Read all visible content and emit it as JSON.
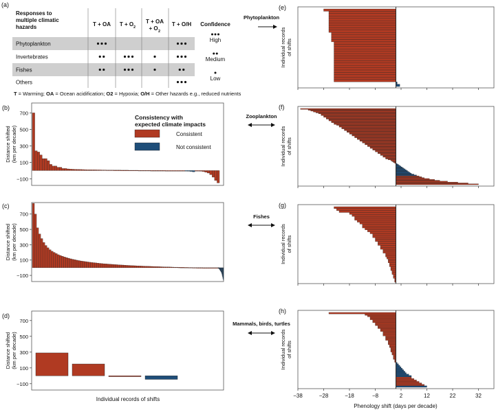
{
  "colors": {
    "consistent": "#b03a22",
    "not_consistent": "#1f4e79",
    "row_shade": "#cfcfcf",
    "frame": "#555555"
  },
  "panel_letters": {
    "a": "(a)",
    "b": "(b)",
    "c": "(c)",
    "d": "(d)",
    "e": "(e)",
    "f": "(f)",
    "g": "(g)",
    "h": "(h)"
  },
  "table": {
    "header": {
      "title_lines": [
        "Responses to",
        "multiple climatic",
        "hazards"
      ],
      "col1": "T + OA",
      "col2_main": "T + O",
      "col2_sub": "2",
      "col3_line1": "T + OA",
      "col3_line2_main": "+ O",
      "col3_line2_sub": "2",
      "col4": "T + O/H",
      "confidence": "Confidence"
    },
    "rows": [
      {
        "label": "Phytoplankton",
        "dots": [
          3,
          0,
          0,
          3
        ],
        "shaded": true
      },
      {
        "label": "Invertebrates",
        "dots": [
          2,
          3,
          1,
          3
        ],
        "shaded": false
      },
      {
        "label": "Fishes",
        "dots": [
          2,
          3,
          1,
          2
        ],
        "shaded": true
      },
      {
        "label": "Others",
        "dots": [
          0,
          0,
          0,
          3
        ],
        "shaded": false
      }
    ],
    "confidence_levels": [
      {
        "label": "High",
        "dots": 3
      },
      {
        "label": "Medium",
        "dots": 2
      },
      {
        "label": "Low",
        "dots": 1
      }
    ],
    "footnote": [
      {
        "text": "T",
        "bold": true
      },
      {
        "text": " = Warming; ",
        "bold": false
      },
      {
        "text": "OA",
        "bold": true
      },
      {
        "text": " = Ocean acidification; ",
        "bold": false
      },
      {
        "text": "O2",
        "bold": true
      },
      {
        "text": " = Hypoxia; ",
        "bold": false
      },
      {
        "text": "O/H",
        "bold": true
      },
      {
        "text": " = Other hazards e.g., reduced nutrients",
        "bold": false
      }
    ]
  },
  "legend": {
    "title_lines": [
      "Consistency with",
      "expected climate impacts"
    ],
    "items": [
      {
        "label": "Consistent",
        "color": "#b03a22"
      },
      {
        "label": "Not consistent",
        "color": "#1f4e79"
      }
    ]
  },
  "group_labels": {
    "phytoplankton": "Phytoplankton",
    "zooplankton": "Zooplankton",
    "fishes": "Fishes",
    "mammals": "Mammals, birds, turtles"
  },
  "left_axes": {
    "ylabel_lines": [
      "Distance shifted",
      "(km per decade)"
    ],
    "xlabel": "Individual records of shifts"
  },
  "right_axes": {
    "ylabel_lines": [
      "Individual records",
      "of shifts"
    ],
    "xlabel": "Phenology shift (days per decade)",
    "x_ticks": [
      -38,
      -28,
      -18,
      -8,
      2,
      12,
      22,
      32
    ],
    "xlim": [
      -38,
      38
    ],
    "zero_line": 0
  },
  "chart_data": [
    {
      "panel": "b",
      "type": "bar",
      "xlabel": "",
      "ylabel": "Distance shifted (km per decade)",
      "y_ticks": [
        -100,
        100,
        300,
        500,
        700
      ],
      "ylim": [
        -180,
        820
      ],
      "series": [
        {
          "name": "Consistent",
          "values": [
            700,
            240,
            225,
            190,
            145,
            145,
            120,
            75,
            55,
            55,
            40,
            40,
            25,
            25,
            20,
            18,
            16,
            15,
            14,
            13,
            12,
            11,
            10,
            10,
            9,
            9,
            8,
            8,
            7,
            7,
            6,
            6,
            6,
            5,
            5,
            5,
            4,
            4,
            4,
            3,
            3,
            3,
            3,
            2,
            2,
            2,
            2,
            2,
            1,
            1,
            1,
            1,
            1,
            1,
            0,
            0,
            0,
            0,
            0,
            0,
            0,
            0,
            0,
            0,
            0,
            0,
            -2,
            -4,
            -8,
            -12,
            -20,
            -30,
            -50,
            -80,
            -120,
            -150
          ]
        },
        {
          "name": "Not consistent",
          "indices": [
            62,
            63,
            64,
            65
          ],
          "values": [
            -5,
            -8,
            -10,
            -15
          ]
        }
      ]
    },
    {
      "panel": "c",
      "type": "bar",
      "xlabel": "",
      "ylabel": "Distance shifted (km per decade)",
      "y_ticks": [
        -100,
        100,
        300,
        500,
        700
      ],
      "ylim": [
        -180,
        850
      ],
      "series": [
        {
          "name": "Consistent",
          "values": [
            840,
            700,
            520,
            440,
            380,
            330,
            290,
            260,
            235,
            215,
            200,
            185,
            170,
            160,
            150,
            140,
            132,
            124,
            116,
            110,
            104,
            98,
            93,
            88,
            84,
            80,
            76,
            72,
            69,
            66,
            63,
            60,
            57,
            54,
            52,
            50,
            48,
            46,
            44,
            42,
            40,
            38,
            36,
            35,
            33,
            31,
            30,
            28,
            27,
            26,
            24,
            23,
            22,
            21,
            20,
            19,
            18,
            17,
            16,
            15,
            14,
            13,
            12,
            11,
            10,
            10,
            9,
            8,
            7,
            7,
            6,
            5,
            5,
            4,
            4,
            3,
            3,
            2,
            2,
            1,
            1,
            1,
            0,
            0,
            0,
            0,
            0,
            0,
            0,
            0
          ]
        },
        {
          "name": "Not consistent",
          "values": [
            -5,
            -10,
            -15,
            -20,
            -28,
            -36,
            -45,
            -55,
            -65,
            -80,
            -100,
            -120,
            -140,
            -160
          ]
        }
      ]
    },
    {
      "panel": "d",
      "type": "bar",
      "xlabel": "Individual records of shifts",
      "ylabel": "Distance shifted (km per decade)",
      "y_ticks": [
        -100,
        100,
        300,
        500,
        700
      ],
      "ylim": [
        -180,
        820
      ],
      "bars": [
        {
          "value": 290,
          "series": "Consistent"
        },
        {
          "value": 150,
          "series": "Consistent"
        },
        {
          "value": -10,
          "series": "Consistent"
        },
        {
          "value": -45,
          "series": "Not consistent"
        }
      ]
    },
    {
      "panel": "e",
      "group": "Phytoplankton",
      "type": "bar",
      "orientation": "horizontal",
      "xlabel": "Phenology shift (days per decade)",
      "xlim": [
        -38,
        38
      ],
      "series": [
        {
          "name": "Consistent",
          "values": [
            -28,
            -26,
            -26,
            -26,
            -26,
            -26,
            -26,
            -26,
            -26,
            -26,
            -25,
            -25,
            -25,
            -25,
            -24,
            -24,
            -24,
            -24,
            -24,
            -24,
            -24,
            -24,
            -24,
            -24,
            -24,
            -24,
            -24,
            -24,
            -24,
            -24,
            -24
          ]
        },
        {
          "name": "Not consistent",
          "values": [
            0.5,
            1.5
          ]
        }
      ]
    },
    {
      "panel": "f",
      "group": "Zooplankton",
      "type": "bar",
      "orientation": "horizontal",
      "xlabel": "Phenology shift (days per decade)",
      "xlim": [
        -38,
        38
      ],
      "series": [
        {
          "name": "Consistent",
          "values": [
            -37,
            -34,
            -33,
            -32,
            -31,
            -30,
            -29,
            -29,
            -28,
            -28,
            -27,
            -27,
            -26,
            -26,
            -25,
            -25,
            -24,
            -24,
            -23,
            -22,
            -22,
            -21,
            -21,
            -20,
            -20,
            -19,
            -19,
            -18,
            -18,
            -17,
            -17,
            -16,
            -16,
            -15,
            -15,
            -14,
            -14,
            -13,
            -13,
            -12,
            -12,
            -11,
            -11,
            -10,
            -10,
            -9,
            -9,
            -8,
            -8,
            -7,
            -7,
            -6,
            -6,
            -5,
            -5,
            -4,
            -4,
            -3,
            -2,
            -1.5,
            -1,
            -0.5
          ]
        },
        {
          "name": "Not consistent",
          "values": [
            0.5,
            1,
            1.5,
            2,
            2.5,
            3,
            3.5,
            4,
            4.5,
            5,
            5.5,
            6,
            7,
            8
          ]
        },
        {
          "name": "Consistent",
          "values": [
            9,
            10,
            11,
            13,
            15,
            17,
            20,
            24,
            28,
            32
          ]
        }
      ]
    },
    {
      "panel": "g",
      "group": "Fishes",
      "type": "bar",
      "orientation": "horizontal",
      "xlabel": "Phenology shift (days per decade)",
      "xlim": [
        -38,
        38
      ],
      "series": [
        {
          "name": "Consistent",
          "values": [
            -24,
            -23,
            -22,
            -18,
            -17,
            -16,
            -16,
            -15,
            -14,
            -13,
            -13,
            -12,
            -11,
            -10,
            -9,
            -9,
            -8,
            -8,
            -7,
            -7,
            -6,
            -6,
            -5,
            -5,
            -4,
            -4,
            -3.5,
            -3,
            -3,
            -2.5,
            -2.5,
            -2,
            -2,
            -1.5,
            -1.5,
            -1,
            -1,
            -0.5,
            -0.5
          ]
        }
      ]
    },
    {
      "panel": "h",
      "group": "Mammals, birds, turtles",
      "type": "bar",
      "orientation": "horizontal",
      "xlabel": "Phenology shift (days per decade)",
      "xlim": [
        -38,
        38
      ],
      "series": [
        {
          "name": "Consistent",
          "values": [
            -26,
            -12,
            -11,
            -10,
            -10,
            -9,
            -9,
            -8,
            -8,
            -7,
            -7,
            -6,
            -6,
            -5,
            -5,
            -5,
            -4,
            -4,
            -4,
            -3,
            -3,
            -3,
            -2.5,
            -2.5,
            -2,
            -2,
            -2,
            -1.5,
            -1.5,
            -1,
            -1,
            -1,
            -0.5,
            -0.5
          ]
        },
        {
          "name": "Not consistent",
          "values": [
            0.5,
            1,
            1.5,
            2,
            2.5,
            3,
            3.5,
            4,
            5,
            6
          ]
        },
        {
          "name": "Consistent",
          "values": [
            6,
            7,
            8,
            9,
            10,
            11
          ]
        },
        {
          "name": "Not consistent",
          "values": [
            12
          ]
        }
      ]
    }
  ]
}
